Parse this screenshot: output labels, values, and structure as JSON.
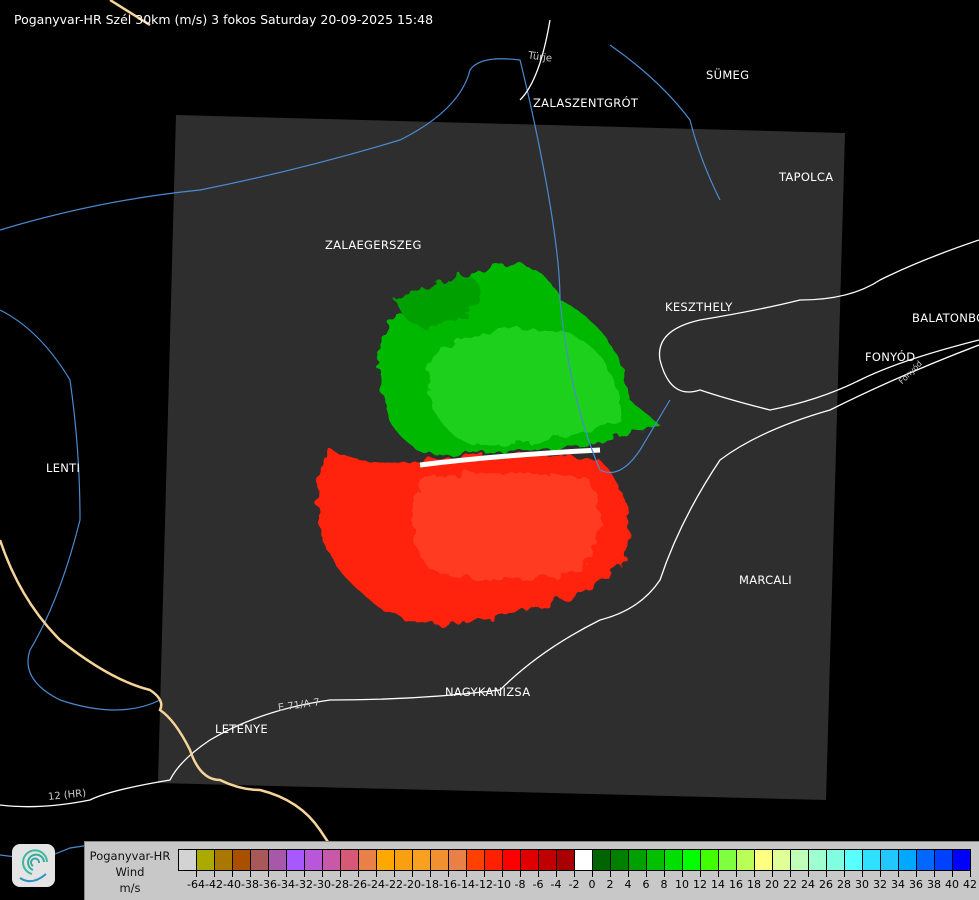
{
  "title": "Poganyvar-HR Szél 30km (m/s) 3 fokos Saturday 20-09-2025 15:48",
  "places": [
    {
      "name": "SÜMEG"
    },
    {
      "name": "ZALASZENTGRÓT"
    },
    {
      "name": "TAPOLCA"
    },
    {
      "name": "ZALAEGERSZEG"
    },
    {
      "name": "KESZTHELY"
    },
    {
      "name": "BALATONBO"
    },
    {
      "name": "FONYÓD"
    },
    {
      "name": "LENTI"
    },
    {
      "name": "MARCALI"
    },
    {
      "name": "NAGYKANIZSA"
    },
    {
      "name": "LETENYE"
    }
  ],
  "minor_labels": [
    "Türje",
    "E 71/A 7",
    "12 (HR)",
    "Fonyód"
  ],
  "legend": {
    "title": [
      "Poganyvar-HR",
      "Wind",
      "m/s"
    ],
    "colors": [
      "#d3d3d3",
      "#aaaa00",
      "#a87800",
      "#a85000",
      "#a85858",
      "#a858a8",
      "#a858ff",
      "#b858d8",
      "#c858a8",
      "#d85878",
      "#e88048",
      "#ffa800",
      "#f8a010",
      "#f8a020",
      "#f09030",
      "#e88048",
      "#ff4000",
      "#ff2000",
      "#ff0000",
      "#e00000",
      "#c00000",
      "#a80000",
      "#ffffff",
      "#006400",
      "#008000",
      "#00a000",
      "#00c000",
      "#00e000",
      "#00ff00",
      "#40ff00",
      "#80ff40",
      "#b8ff58",
      "#ffff80",
      "#e0ff98",
      "#c0ffb8",
      "#a0ffd0",
      "#80ffe0",
      "#58ffff",
      "#30e0ff",
      "#20c8ff",
      "#00a8ff",
      "#0068ff",
      "#0040ff",
      "#0000ff"
    ],
    "ticks": [
      "-64",
      "-42",
      "-40",
      "-38",
      "-36",
      "-34",
      "-32",
      "-30",
      "-28",
      "-26",
      "-24",
      "-22",
      "-20",
      "-18",
      "-16",
      "-14",
      "-12",
      "-10",
      "-8",
      "-6",
      "-4",
      "-2",
      "0",
      "2",
      "4",
      "6",
      "8",
      "10",
      "12",
      "14",
      "16",
      "18",
      "20",
      "22",
      "24",
      "26",
      "28",
      "30",
      "32",
      "34",
      "36",
      "38",
      "40",
      "42"
    ]
  },
  "colors": {
    "radar_area": "#2e2e2e",
    "approaching": "#00e000",
    "receding": "#ff2000",
    "river": "#4a8ad0",
    "border": "#f5d49a",
    "road": "#ffffff"
  }
}
